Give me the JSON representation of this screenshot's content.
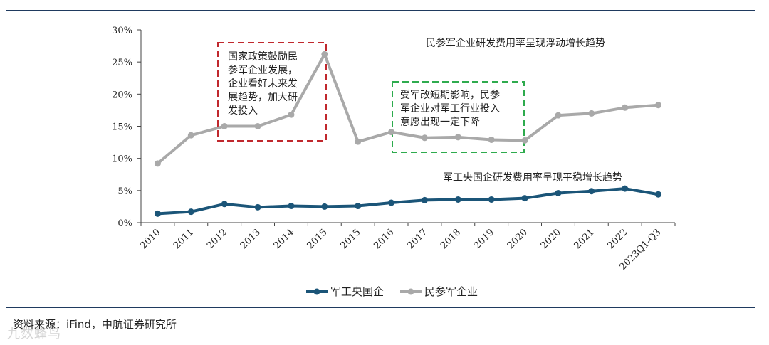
{
  "colors": {
    "soe": "#1b5578",
    "private": "#a9a9a9",
    "red_box": "#c0282d",
    "green_box": "#2eab4e",
    "rule": "#1f3a5f"
  },
  "chart_data": {
    "type": "line",
    "categories": [
      "2010",
      "2011",
      "2012",
      "2013",
      "2014",
      "2015",
      "2015",
      "2016",
      "2017",
      "2018",
      "2019",
      "2020",
      "2020",
      "2021",
      "2022",
      "2023Q1-Q3"
    ],
    "series": [
      {
        "name": "军工央国企",
        "values": [
          1.4,
          1.7,
          2.9,
          2.4,
          2.6,
          2.5,
          2.6,
          3.1,
          3.5,
          3.6,
          3.6,
          3.8,
          4.6,
          4.9,
          5.3,
          4.4
        ]
      },
      {
        "name": "民参军企业",
        "values": [
          9.2,
          13.6,
          15.0,
          15.0,
          16.8,
          26.2,
          12.6,
          14.1,
          13.2,
          13.3,
          12.9,
          12.8,
          16.7,
          17.0,
          17.9,
          18.3
        ]
      }
    ],
    "y_ticks": [
      "0%",
      "5%",
      "10%",
      "15%",
      "20%",
      "25%",
      "30%"
    ],
    "ylim": [
      0,
      30
    ],
    "legend_position": "bottom",
    "annotations": {
      "private_trend": "民参军企业研发费用率呈现浮动增长趋势",
      "soe_trend": "军工央国企研发费用率呈现平稳增长趋势",
      "policy_box": [
        "国家政策鼓励民",
        "参军企业发展，",
        "企业看好未来发",
        "展趋势，加大研",
        "发投入"
      ],
      "reform_box": [
        "受军改短期影响，民参",
        "军企业对军工行业投入",
        "意愿出现一定下降"
      ]
    }
  },
  "source": "资料来源：iFind，中航证券研究所",
  "watermark": "九数蜂鸟"
}
